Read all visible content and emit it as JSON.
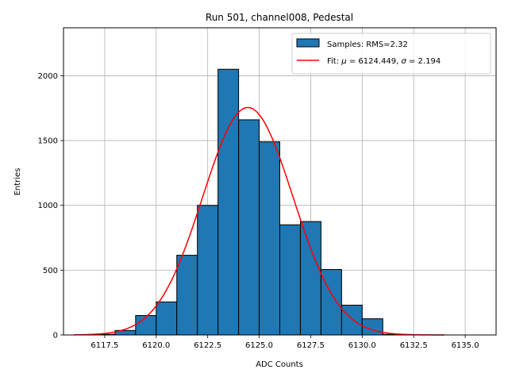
{
  "chart_data": {
    "type": "bar",
    "title": "Run 501, channel008, Pedestal",
    "xlabel": "ADC Counts",
    "ylabel": "Entries",
    "xlim": [
      6115.5,
      6136.5
    ],
    "ylim": [
      0,
      2370
    ],
    "grid": true,
    "legend_position": "top-right",
    "colors": {
      "bars": "#1f77b4",
      "bar_edge": "#000000",
      "fit": "#ff0000",
      "grid": "#b0b0b0"
    },
    "x_ticks": [
      6117.5,
      6120.0,
      6122.5,
      6125.0,
      6127.5,
      6130.0,
      6132.5,
      6135.0
    ],
    "x_tick_labels": [
      "6117.5",
      "6120.0",
      "6122.5",
      "6125.0",
      "6127.5",
      "6130.0",
      "6132.5",
      "6135.0"
    ],
    "y_ticks": [
      0,
      500,
      1000,
      1500,
      2000
    ],
    "y_tick_labels": [
      "0",
      "500",
      "1000",
      "1500",
      "2000"
    ],
    "histogram": {
      "name": "Samples: RMS=2.32",
      "bin_edges": [
        6116,
        6117,
        6118,
        6119,
        6120,
        6121,
        6122,
        6123,
        6124,
        6125,
        6126,
        6127,
        6128,
        6129,
        6130,
        6131,
        6132,
        6133,
        6134,
        6135,
        6136
      ],
      "counts": [
        0,
        5,
        35,
        150,
        255,
        615,
        1000,
        2050,
        1660,
        1490,
        850,
        875,
        505,
        230,
        125,
        5,
        0,
        0,
        0,
        0
      ]
    },
    "fit": {
      "name_prefix": "Fit: ",
      "name_mu": "μ",
      "name_mid": " = 6124.449, ",
      "name_sigma": "σ",
      "name_suffix": " = 2.194",
      "mu": 6124.449,
      "sigma": 2.194,
      "amplitude": 1755,
      "x_range": [
        6116,
        6134
      ]
    }
  }
}
